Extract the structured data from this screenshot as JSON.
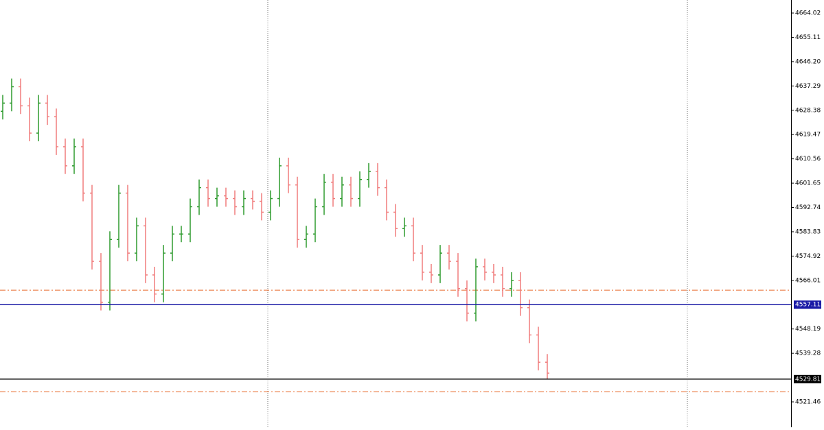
{
  "chart_data": {
    "type": "ohlc",
    "ylim": [
      4512.16,
      4668.8
    ],
    "yticks": [
      4664.02,
      4655.11,
      {
        "value": 4646.2,
        "label": "4646.20"
      },
      4637.29,
      4628.38,
      4619.47,
      4610.56,
      4601.65,
      4592.74,
      4583.83,
      4574.92,
      4566.01,
      4548.19,
      4539.28,
      4521.46
    ],
    "up_color": "#2e9a2e",
    "down_color": "#f07c7c",
    "open": [
      4628,
      4631,
      4637,
      4630,
      4620,
      4631,
      4626,
      4615,
      4608,
      4615,
      4598,
      4573,
      4558,
      4581,
      4598,
      4576,
      4586,
      4568,
      4561,
      4576,
      4583,
      4583,
      4593,
      4600,
      4596,
      4597,
      4596,
      4593,
      4596,
      4595,
      4591,
      4596,
      4608,
      4601,
      4581,
      4583,
      4593,
      4602,
      4596,
      4601,
      4596,
      4603,
      4606,
      4600,
      4591,
      4585,
      4586,
      4576,
      4569,
      4568,
      4576,
      4573,
      4563,
      4554,
      4571,
      4569,
      4568,
      4563,
      4566,
      4556,
      4546,
      4536
    ],
    "high": [
      4634,
      4640,
      4640,
      4633,
      4634,
      4634,
      4629,
      4618,
      4618,
      4618,
      4601,
      4576,
      4584,
      4601,
      4601,
      4589,
      4589,
      4571,
      4579,
      4586,
      4586,
      4596,
      4603,
      4603,
      4600,
      4600,
      4599,
      4599,
      4599,
      4598,
      4599,
      4611,
      4611,
      4604,
      4586,
      4596,
      4605,
      4605,
      4604,
      4604,
      4606,
      4609,
      4609,
      4603,
      4594,
      4589,
      4589,
      4579,
      4572,
      4579,
      4579,
      4576,
      4566,
      4574,
      4574,
      4572,
      4571,
      4569,
      4569,
      4559,
      4549,
      4539
    ],
    "low": [
      4625,
      4628,
      4627,
      4617,
      4617,
      4623,
      4612,
      4605,
      4605,
      4595,
      4570,
      4555,
      4555,
      4578,
      4573,
      4573,
      4565,
      4558,
      4558,
      4573,
      4580,
      4580,
      4590,
      4593,
      4593,
      4593,
      4590,
      4590,
      4592,
      4588,
      4588,
      4593,
      4598,
      4578,
      4578,
      4580,
      4590,
      4593,
      4593,
      4593,
      4593,
      4600,
      4597,
      4588,
      4582,
      4582,
      4573,
      4566,
      4565,
      4565,
      4570,
      4560,
      4551,
      4551,
      4566,
      4565,
      4560,
      4560,
      4553,
      4543,
      4533,
      4530
    ],
    "close": [
      4631,
      4637,
      4630,
      4620,
      4631,
      4626,
      4615,
      4608,
      4615,
      4598,
      4573,
      4558,
      4581,
      4598,
      4576,
      4586,
      4568,
      4561,
      4576,
      4583,
      4583,
      4593,
      4600,
      4596,
      4597,
      4596,
      4593,
      4596,
      4595,
      4591,
      4596,
      4608,
      4601,
      4581,
      4583,
      4593,
      4602,
      4596,
      4601,
      4596,
      4603,
      4606,
      4600,
      4591,
      4585,
      4586,
      4576,
      4569,
      4568,
      4576,
      4573,
      4563,
      4554,
      4571,
      4569,
      4568,
      4563,
      4566,
      4556,
      4546,
      4536,
      4532
    ],
    "levels": [
      {
        "value": 4557.11,
        "label": "4557.11",
        "color": "#1a1aa6"
      },
      {
        "value": 4529.81,
        "label": "4529.81",
        "color": "#000000"
      }
    ],
    "dash_levels": [
      4562.4,
      4525.2
    ],
    "dash_color": "#e8692a"
  }
}
